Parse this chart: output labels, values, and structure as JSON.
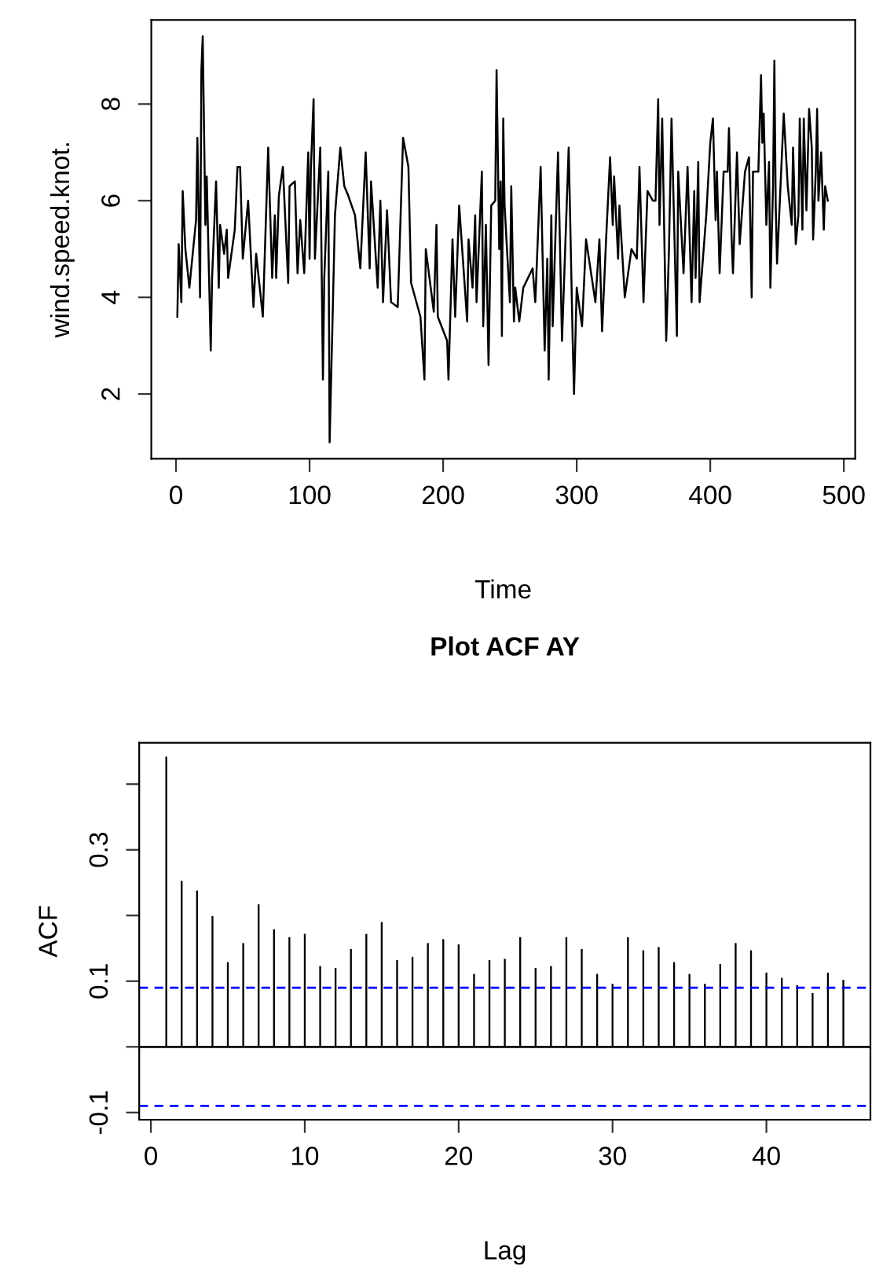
{
  "chart_data": [
    {
      "type": "line",
      "xlabel": "Time",
      "ylabel": "wind.speed.knot.",
      "xlim": [
        -18.5,
        508.5
      ],
      "ylim": [
        0.66,
        9.74
      ],
      "xticks": [
        0,
        100,
        200,
        300,
        400,
        500
      ],
      "yticks": [
        2,
        4,
        6,
        8
      ],
      "grid": false,
      "series": [
        {
          "color": "#000000",
          "x": [
            1,
            2,
            4,
            5,
            7,
            10,
            15,
            16,
            18,
            19,
            20,
            22,
            23,
            26,
            27,
            30,
            32,
            33,
            36,
            38,
            39,
            44,
            46,
            48,
            50,
            54,
            58,
            60,
            65,
            69,
            72,
            74,
            75,
            77,
            80,
            84,
            85,
            89,
            91,
            93,
            96,
            99,
            100,
            101,
            103,
            104,
            108,
            110,
            111,
            114,
            115,
            117,
            119,
            123,
            126,
            129,
            134,
            138,
            142,
            145,
            146,
            151,
            153,
            155,
            158,
            161,
            166,
            170,
            174,
            176,
            183,
            186,
            187,
            193,
            195,
            196,
            203,
            204,
            207,
            209,
            212,
            218,
            219,
            222,
            224,
            225,
            229,
            230,
            232,
            234,
            236,
            239,
            240,
            242,
            243,
            244,
            245,
            246,
            250,
            251,
            253,
            254,
            257,
            260,
            267,
            269,
            273,
            276,
            278,
            279,
            281,
            282,
            286,
            289,
            294,
            297,
            298,
            300,
            304,
            307,
            314,
            317,
            319,
            322,
            325,
            327,
            328,
            331,
            332,
            336,
            341,
            345,
            347,
            350,
            353,
            357,
            359,
            361,
            362,
            364,
            367,
            369,
            371,
            375,
            376,
            380,
            383,
            386,
            388,
            389,
            391,
            392,
            397,
            400,
            402,
            404,
            405,
            407,
            410,
            413,
            414,
            416,
            417,
            420,
            422,
            426,
            429,
            431,
            432,
            436,
            438,
            439,
            440,
            442,
            444,
            445,
            447,
            448,
            449,
            450,
            455,
            458,
            461,
            462,
            464,
            466,
            467,
            469,
            470,
            472,
            474,
            476,
            477,
            479,
            480,
            481,
            483,
            485,
            486,
            488
          ],
          "values": [
            3.6,
            5.1,
            3.9,
            6.2,
            5.0,
            4.2,
            5.6,
            7.3,
            4.0,
            8.7,
            9.4,
            5.5,
            6.5,
            2.9,
            4.4,
            6.4,
            4.2,
            5.5,
            4.9,
            5.4,
            4.4,
            5.4,
            6.7,
            6.7,
            4.8,
            6.0,
            3.8,
            4.9,
            3.6,
            7.1,
            4.4,
            5.7,
            4.4,
            6.1,
            6.7,
            4.3,
            6.3,
            6.4,
            4.5,
            5.6,
            4.5,
            7.0,
            4.8,
            6.7,
            8.1,
            4.8,
            7.1,
            2.3,
            4.4,
            6.6,
            1.0,
            3.3,
            5.7,
            7.1,
            6.3,
            6.1,
            5.7,
            4.6,
            7.0,
            4.6,
            6.4,
            4.2,
            6.0,
            3.9,
            5.8,
            3.9,
            3.8,
            7.3,
            6.7,
            4.3,
            3.6,
            2.3,
            5.0,
            3.7,
            5.5,
            3.6,
            3.1,
            2.3,
            5.2,
            3.6,
            5.9,
            3.5,
            5.2,
            4.2,
            5.7,
            3.9,
            6.6,
            3.4,
            5.5,
            2.6,
            5.9,
            6.0,
            8.7,
            5.0,
            6.4,
            3.2,
            7.7,
            5.9,
            3.9,
            6.3,
            3.5,
            4.2,
            3.5,
            4.2,
            4.6,
            3.9,
            6.7,
            2.9,
            4.8,
            2.3,
            5.7,
            3.4,
            7.0,
            3.1,
            7.1,
            3.1,
            2.0,
            4.2,
            3.4,
            5.2,
            3.9,
            5.2,
            3.3,
            5.2,
            6.9,
            5.5,
            6.5,
            4.8,
            5.9,
            4.0,
            5.0,
            4.8,
            6.7,
            3.9,
            6.2,
            6.0,
            6.0,
            8.1,
            5.5,
            7.7,
            3.1,
            4.9,
            7.7,
            3.2,
            6.6,
            4.5,
            6.7,
            3.9,
            6.2,
            4.4,
            6.8,
            3.9,
            5.7,
            7.2,
            7.7,
            5.6,
            6.6,
            4.5,
            6.6,
            6.6,
            7.5,
            5.2,
            4.5,
            7.0,
            5.1,
            6.6,
            6.9,
            4.0,
            6.6,
            6.6,
            8.6,
            7.2,
            7.8,
            5.5,
            6.8,
            4.2,
            6.3,
            8.9,
            5.9,
            4.7,
            7.8,
            6.3,
            5.5,
            7.1,
            5.1,
            5.7,
            7.7,
            5.4,
            7.7,
            5.8,
            7.9,
            7.1,
            5.2,
            6.6,
            7.9,
            6.0,
            7.0,
            5.4,
            6.3,
            6.0
          ]
        }
      ]
    },
    {
      "type": "bar",
      "title": "Plot ACF AY",
      "xlabel": "Lag",
      "ylabel": "ACF",
      "xlim": [
        -0.76,
        46.76
      ],
      "ylim": [
        -0.111,
        0.463
      ],
      "xticks": [
        0,
        10,
        20,
        30,
        40
      ],
      "yticks": [
        {
          "value": -0.1,
          "label": "-0.1"
        },
        {
          "value": 0.0,
          "label": null
        },
        {
          "value": 0.1,
          "label": "0.1"
        },
        {
          "value": 0.2,
          "label": null
        },
        {
          "value": 0.3,
          "label": "0.3"
        },
        {
          "value": 0.4,
          "label": null
        }
      ],
      "grid": false,
      "ref_lines": [
        {
          "axis": "y",
          "value": 0,
          "color": "#000000",
          "line_style": "solid"
        },
        {
          "axis": "y",
          "value": 0.09,
          "color": "#0000ff",
          "line_style": "dashed"
        },
        {
          "axis": "y",
          "value": -0.09,
          "color": "#0000ff",
          "line_style": "dashed"
        }
      ],
      "series": [
        {
          "color": "#000000",
          "x": [
            1,
            2,
            3,
            4,
            5,
            6,
            7,
            8,
            9,
            10,
            11,
            12,
            13,
            14,
            15,
            16,
            17,
            18,
            19,
            20,
            21,
            22,
            23,
            24,
            25,
            26,
            27,
            28,
            29,
            30,
            31,
            32,
            33,
            34,
            35,
            36,
            37,
            38,
            39,
            40,
            41,
            42,
            43,
            44,
            45
          ],
          "values": [
            0.442,
            0.253,
            0.238,
            0.199,
            0.129,
            0.158,
            0.217,
            0.179,
            0.167,
            0.172,
            0.123,
            0.12,
            0.149,
            0.172,
            0.19,
            0.132,
            0.137,
            0.158,
            0.164,
            0.156,
            0.111,
            0.132,
            0.134,
            0.167,
            0.12,
            0.123,
            0.167,
            0.149,
            0.111,
            0.096,
            0.167,
            0.147,
            0.152,
            0.129,
            0.111,
            0.096,
            0.126,
            0.158,
            0.147,
            0.113,
            0.105,
            0.094,
            0.082,
            0.113,
            0.102
          ]
        }
      ]
    }
  ]
}
